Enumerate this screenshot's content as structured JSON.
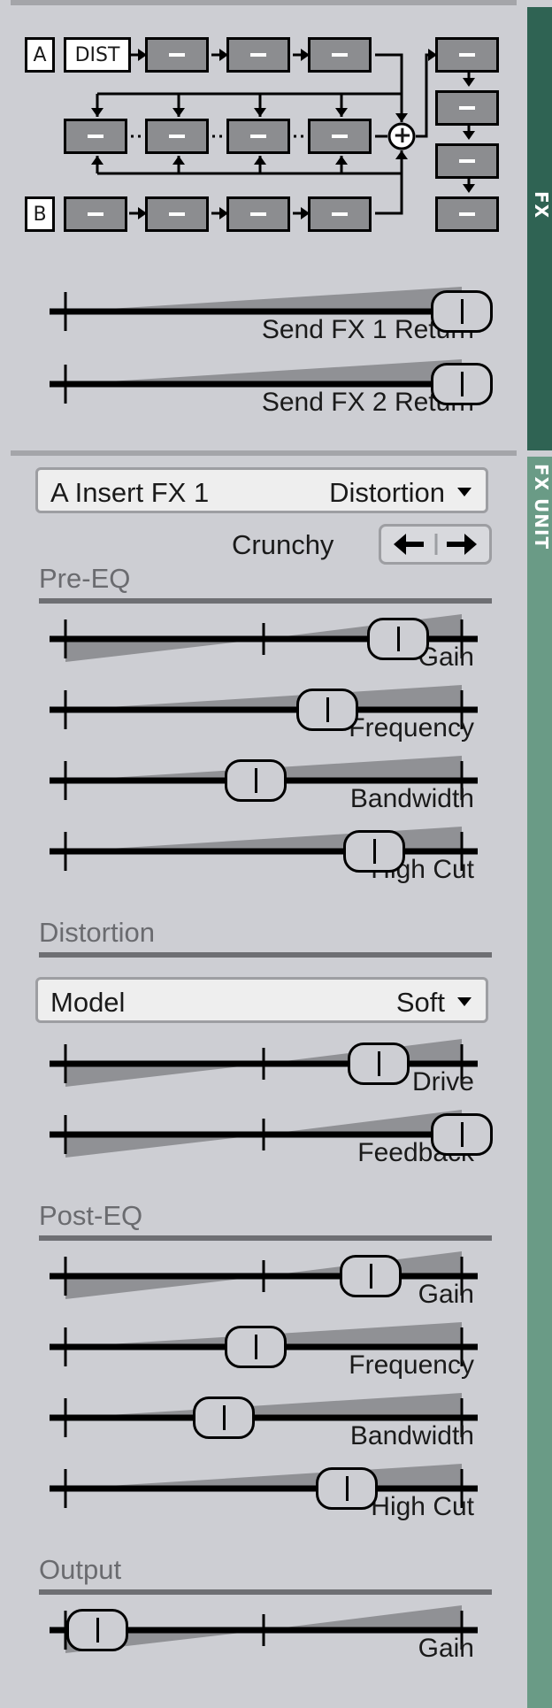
{
  "tabs": {
    "fx": "FX",
    "fx_unit": "FX UNIT"
  },
  "routing": {
    "input_a": "A",
    "input_b": "B",
    "dist_label": "DIST",
    "sum_symbol": "+"
  },
  "sends": [
    {
      "label": "Send FX 1 Return",
      "value": 1.0
    },
    {
      "label": "Send FX 2 Return",
      "value": 1.0
    }
  ],
  "insert": {
    "slot": "A Insert FX 1",
    "type": "Distortion"
  },
  "preset": {
    "name": "Crunchy",
    "prev_icon": "arrow-left-icon",
    "next_icon": "arrow-right-icon"
  },
  "pre_eq": {
    "title": "Pre-EQ",
    "params": [
      {
        "label": "Gain",
        "value": 0.84,
        "bipolar": true
      },
      {
        "label": "Frequency",
        "value": 0.66,
        "bipolar": false
      },
      {
        "label": "Bandwidth",
        "value": 0.48,
        "bipolar": false
      },
      {
        "label": "High Cut",
        "value": 0.78,
        "bipolar": false
      }
    ]
  },
  "distortion": {
    "title": "Distortion",
    "model_label": "Model",
    "model_value": "Soft",
    "params": [
      {
        "label": "Drive",
        "value": 0.79,
        "bipolar": true
      },
      {
        "label": "Feedback",
        "value": 1.0,
        "bipolar": true
      }
    ]
  },
  "post_eq": {
    "title": "Post-EQ",
    "params": [
      {
        "label": "Gain",
        "value": 0.77,
        "bipolar": true
      },
      {
        "label": "Frequency",
        "value": 0.48,
        "bipolar": false
      },
      {
        "label": "Bandwidth",
        "value": 0.4,
        "bipolar": false
      },
      {
        "label": "High Cut",
        "value": 0.71,
        "bipolar": false
      }
    ]
  },
  "output": {
    "title": "Output",
    "params": [
      {
        "label": "Gain",
        "value": 0.08,
        "bipolar": true
      }
    ]
  },
  "colors": {
    "fx_tab": "#2f6353",
    "fx_unit_tab": "#6a9b86",
    "background": "#cdced3",
    "slot": "#8c8d90"
  }
}
